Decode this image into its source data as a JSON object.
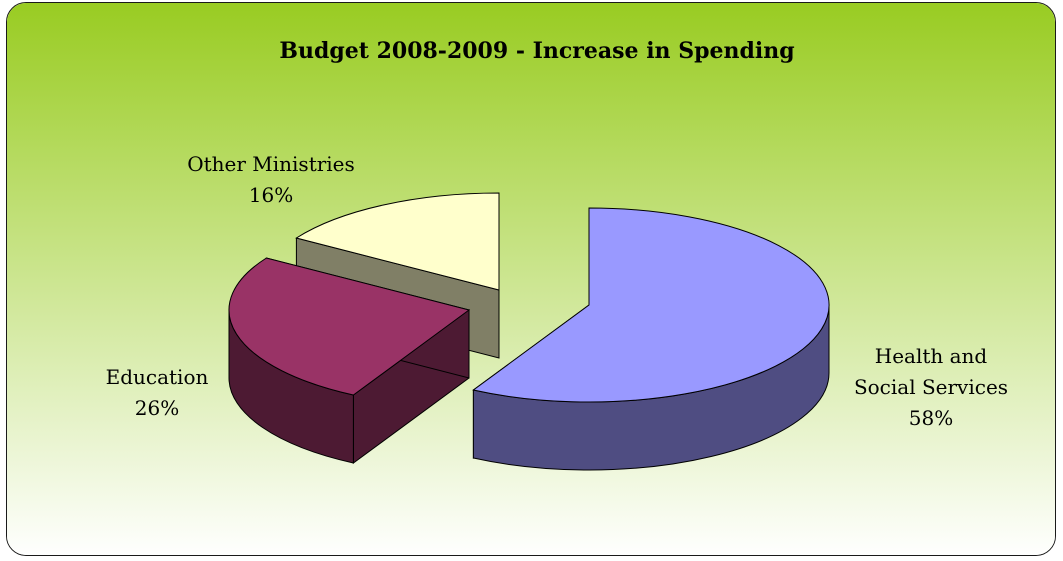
{
  "chart_data": {
    "type": "pie",
    "style": "3d-exploded",
    "title": "Budget 2008-2009 - Increase in Spending",
    "slices": [
      {
        "name": "Health and Social Services",
        "value": 58,
        "label_lines": [
          "Health and",
          "Social Services"
        ],
        "percent_label": "58%",
        "color": "#9999ff",
        "side_color": "#4f4d82"
      },
      {
        "name": "Education",
        "value": 26,
        "label_lines": [
          "Education"
        ],
        "percent_label": "26%",
        "color": "#993366",
        "side_color": "#4d1a33"
      },
      {
        "name": "Other Ministries",
        "value": 16,
        "label_lines": [
          "Other Ministries"
        ],
        "percent_label": "16%",
        "color": "#ffffcc",
        "side_color": "#807f66"
      }
    ],
    "legend": "none",
    "grid": false
  },
  "colors": {
    "background_top": "#99cc22",
    "background_bottom": "#ffffff",
    "frame_border": "#1a1a1a"
  }
}
